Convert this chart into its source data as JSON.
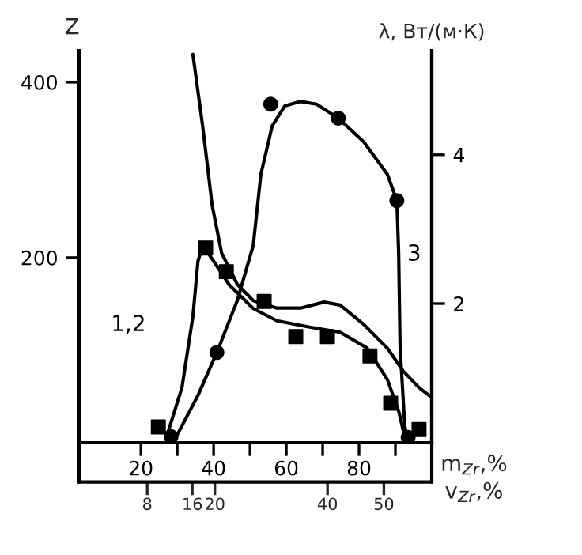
{
  "chart_data": {
    "type": "line",
    "ylabel": "Z",
    "y2label": "λ, Вт/(м·К)",
    "xlabel": "m$_{Zr}$,%",
    "x2label": "v$_{Zr}$,%",
    "xlim": [
      3,
      100
    ],
    "xticks": [
      20,
      {
        "value": 30,
        "label": null
      },
      40,
      {
        "value": 50,
        "label": null
      },
      60,
      {
        "value": 70,
        "label": null
      },
      80,
      {
        "value": 90,
        "label": null
      }
    ],
    "x2lim": [
      -4.1,
      58.5
    ],
    "x2ticks": [
      8,
      16,
      20,
      40,
      50
    ],
    "ylim": [
      -11,
      436
    ],
    "yticks": [
      200,
      400
    ],
    "y2lim": [
      0.13,
      5.4
    ],
    "y2ticks": [
      2,
      4
    ],
    "grid": false,
    "legend": false,
    "series": [
      {
        "type": "scatter",
        "marker": "square",
        "color": "#000000",
        "x": [
          24.8,
          37.8,
          43.5,
          53.9,
          62.6,
          71.3,
          83,
          88.7,
          96.5
        ],
        "values": [
          7,
          211,
          184,
          150,
          110,
          110,
          88,
          34,
          4
        ]
      },
      {
        "name": "1,2",
        "marker": "none",
        "color": "#000000",
        "x": [
          27,
          31.3,
          34.3,
          35.7,
          37,
          40,
          44.3,
          50.9,
          57.4,
          66.1,
          74.8,
          82.2,
          87.8,
          90.9,
          92.6
        ],
        "values": [
          -5,
          52,
          133,
          196,
          214,
          196,
          169,
          142,
          128,
          121,
          115,
          97,
          61,
          25,
          -5
        ]
      },
      {
        "type": "scatter",
        "marker": "circle",
        "color": "#000000",
        "x": [
          28.3,
          40.9,
          55.7,
          74.3,
          90.4,
          93.5
        ],
        "values": [
          -4,
          92,
          375,
          359,
          265,
          -5
        ]
      },
      {
        "name": "3",
        "marker": "none",
        "color": "#000000",
        "x": [
          29.1,
          35.7,
          40.9,
          46.5,
          50.9,
          53,
          56.1,
          59.6,
          63.9,
          68.3,
          74.3,
          81.3,
          87.8,
          90.4,
          90.9,
          91.3,
          92.6,
          93.5
        ],
        "values": [
          -9,
          43,
          92,
          151,
          214,
          295,
          350,
          373,
          378,
          375,
          359,
          332,
          295,
          265,
          205,
          97,
          7,
          -7
        ]
      },
      {
        "axis": "y2",
        "marker": "none",
        "color": "#000000",
        "x": [
          34.3,
          37,
          39.6,
          42.2,
          46.5,
          50.9,
          57.4,
          63.9,
          70.4,
          74.8,
          81.3,
          87.8,
          92.2,
          96.5,
          100
        ],
        "values": [
          5.35,
          4.38,
          3.32,
          2.68,
          2.26,
          2.04,
          1.94,
          1.94,
          2.02,
          1.98,
          1.72,
          1.4,
          1.09,
          0.87,
          0.74
        ]
      }
    ]
  }
}
